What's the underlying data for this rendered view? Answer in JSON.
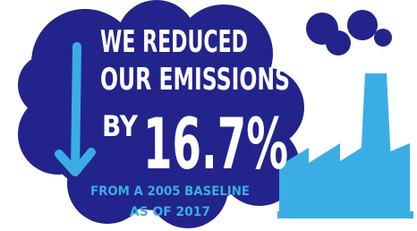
{
  "headline": {
    "lines": [
      "WE REDUCED",
      "OUR EMISSIONS"
    ],
    "prefix": "BY",
    "stat": "16.7%"
  },
  "footnote": {
    "lines": [
      "FROM A 2005 BASELINE",
      "AS OF 2017"
    ]
  }
}
